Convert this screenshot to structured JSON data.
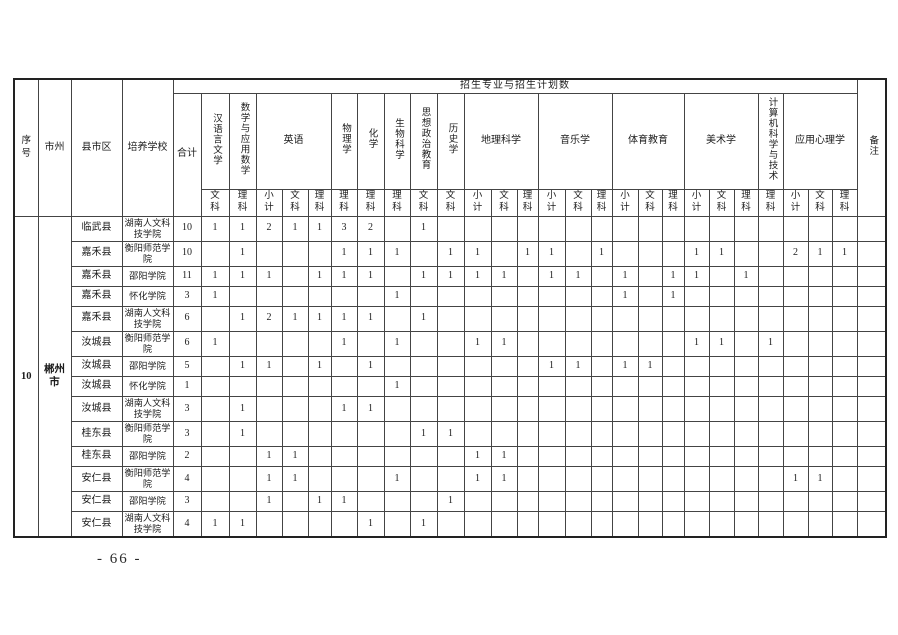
{
  "page": {
    "footer": "- 66 -"
  },
  "table": {
    "top_header": "招生专业与招生计划数",
    "corner": {
      "no": "序号",
      "city": "市州",
      "county": "县市区",
      "school": "培养学校",
      "total": "合计",
      "remark": "备注"
    },
    "subjects": [
      "汉语言文学",
      "数学与应用数学",
      "英语",
      "物理学",
      "化学",
      "生物科学",
      "思想政治教育",
      "历史学",
      "地理科学",
      "音乐学",
      "体育教育",
      "美术学",
      "计算机科学与技术",
      "应用心理学"
    ],
    "subcols": [
      "文科",
      "理科",
      "小计",
      "文科",
      "理科",
      "理科",
      "理科",
      "理科",
      "文科",
      "文科",
      "小计",
      "文科",
      "理科",
      "小计",
      "文科",
      "理科",
      "小计",
      "文科",
      "理科",
      "小计",
      "文科",
      "理科",
      "理科",
      "小计",
      "文科",
      "理科"
    ],
    "group": {
      "no": "10",
      "city": "郴州市"
    },
    "rows": [
      {
        "county": "临武县",
        "school": "湖南人文科技学院",
        "total": "10",
        "values": [
          "1",
          "1",
          "2",
          "1",
          "1",
          "3",
          "2",
          "",
          "1",
          "",
          "",
          "",
          "",
          "",
          "",
          "",
          "",
          "",
          "",
          "",
          "",
          "",
          "",
          "",
          "",
          ""
        ],
        "remark": ""
      },
      {
        "county": "嘉禾县",
        "school": "衡阳师范学院",
        "total": "10",
        "values": [
          "",
          "1",
          "",
          "",
          "",
          "1",
          "1",
          "1",
          "",
          "1",
          "1",
          "",
          "1",
          "1",
          "",
          "1",
          "",
          "",
          "",
          "1",
          "1",
          "",
          "",
          "2",
          "1",
          "1"
        ],
        "remark": ""
      },
      {
        "county": "嘉禾县",
        "school": "邵阳学院",
        "total": "11",
        "values": [
          "1",
          "1",
          "1",
          "",
          "1",
          "1",
          "1",
          "",
          "1",
          "1",
          "1",
          "1",
          "",
          "1",
          "1",
          "",
          "1",
          "",
          "1",
          "1",
          "",
          "1",
          "",
          "",
          "",
          ""
        ],
        "remark": ""
      },
      {
        "county": "嘉禾县",
        "school": "怀化学院",
        "total": "3",
        "values": [
          "1",
          "",
          "",
          "",
          "",
          "",
          "",
          "1",
          "",
          "",
          "",
          "",
          "",
          "",
          "",
          "",
          "1",
          "",
          "1",
          "",
          "",
          "",
          "",
          "",
          "",
          ""
        ],
        "remark": ""
      },
      {
        "county": "嘉禾县",
        "school": "湖南人文科技学院",
        "total": "6",
        "values": [
          "",
          "1",
          "2",
          "1",
          "1",
          "1",
          "1",
          "",
          "1",
          "",
          "",
          "",
          "",
          "",
          "",
          "",
          "",
          "",
          "",
          "",
          "",
          "",
          "",
          "",
          "",
          ""
        ],
        "remark": ""
      },
      {
        "county": "汝城县",
        "school": "衡阳师范学院",
        "total": "6",
        "values": [
          "1",
          "",
          "",
          "",
          "",
          "1",
          "",
          "1",
          "",
          "",
          "1",
          "1",
          "",
          "",
          "",
          "",
          "",
          "",
          "",
          "1",
          "1",
          "",
          "1",
          "",
          "",
          ""
        ],
        "remark": ""
      },
      {
        "county": "汝城县",
        "school": "邵阳学院",
        "total": "5",
        "values": [
          "",
          "1",
          "1",
          "",
          "1",
          "",
          "1",
          "",
          "",
          "",
          "",
          "",
          "",
          "1",
          "1",
          "",
          "1",
          "1",
          "",
          "",
          "",
          "",
          "",
          "",
          "",
          ""
        ],
        "remark": ""
      },
      {
        "county": "汝城县",
        "school": "怀化学院",
        "total": "1",
        "values": [
          "",
          "",
          "",
          "",
          "",
          "",
          "",
          "1",
          "",
          "",
          "",
          "",
          "",
          "",
          "",
          "",
          "",
          "",
          "",
          "",
          "",
          "",
          "",
          "",
          "",
          ""
        ],
        "remark": ""
      },
      {
        "county": "汝城县",
        "school": "湖南人文科技学院",
        "total": "3",
        "values": [
          "",
          "1",
          "",
          "",
          "",
          "1",
          "1",
          "",
          "",
          "",
          "",
          "",
          "",
          "",
          "",
          "",
          "",
          "",
          "",
          "",
          "",
          "",
          "",
          "",
          "",
          ""
        ],
        "remark": ""
      },
      {
        "county": "桂东县",
        "school": "衡阳师范学院",
        "total": "3",
        "values": [
          "",
          "1",
          "",
          "",
          "",
          "",
          "",
          "",
          "1",
          "1",
          "",
          "",
          "",
          "",
          "",
          "",
          "",
          "",
          "",
          "",
          "",
          "",
          "",
          "",
          "",
          ""
        ],
        "remark": ""
      },
      {
        "county": "桂东县",
        "school": "邵阳学院",
        "total": "2",
        "values": [
          "",
          "",
          "1",
          "1",
          "",
          "",
          "",
          "",
          "",
          "",
          "1",
          "1",
          "",
          "",
          "",
          "",
          "",
          "",
          "",
          "",
          "",
          "",
          "",
          "",
          "",
          ""
        ],
        "remark": ""
      },
      {
        "county": "安仁县",
        "school": "衡阳师范学院",
        "total": "4",
        "values": [
          "",
          "",
          "1",
          "1",
          "",
          "",
          "",
          "1",
          "",
          "",
          "1",
          "1",
          "",
          "",
          "",
          "",
          "",
          "",
          "",
          "",
          "",
          "",
          "",
          "1",
          "1",
          ""
        ],
        "remark": ""
      },
      {
        "county": "安仁县",
        "school": "邵阳学院",
        "total": "3",
        "values": [
          "",
          "",
          "1",
          "",
          "1",
          "1",
          "",
          "",
          "",
          "1",
          "",
          "",
          "",
          "",
          "",
          "",
          "",
          "",
          "",
          "",
          "",
          "",
          "",
          "",
          "",
          ""
        ],
        "remark": ""
      },
      {
        "county": "安仁县",
        "school": "湖南人文科技学院",
        "total": "4",
        "values": [
          "1",
          "1",
          "",
          "",
          "",
          "",
          "1",
          "",
          "1",
          "",
          "",
          "",
          "",
          "",
          "",
          "",
          "",
          "",
          "",
          "",
          "",
          "",
          "",
          "",
          "",
          ""
        ],
        "remark": ""
      }
    ]
  }
}
